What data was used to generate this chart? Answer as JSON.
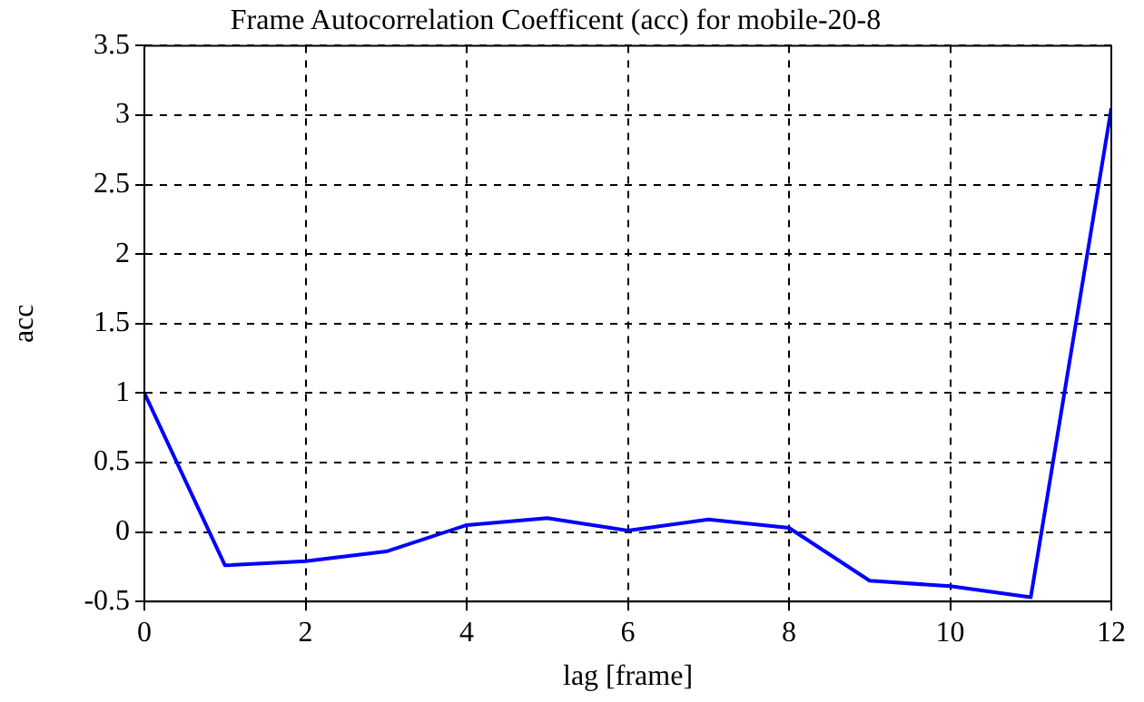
{
  "chart_data": {
    "type": "line",
    "title": "Frame Autocorrelation Coefficent (acc) for mobile-20-8",
    "xlabel": "lag [frame]",
    "ylabel": "acc",
    "x": [
      0,
      1,
      2,
      3,
      4,
      5,
      6,
      7,
      8,
      9,
      10,
      11,
      12
    ],
    "series": [
      {
        "color": "#0000ff",
        "values": [
          1.0,
          -0.24,
          -0.21,
          -0.14,
          0.05,
          0.1,
          0.01,
          0.09,
          0.03,
          -0.35,
          -0.39,
          -0.47,
          3.05
        ]
      }
    ],
    "xlim": [
      0,
      12
    ],
    "xticks": [
      0,
      2,
      4,
      6,
      8,
      10,
      12
    ],
    "ylim": [
      -0.5,
      3.5
    ],
    "yticks": [
      -0.5,
      0,
      0.5,
      1,
      1.5,
      2,
      2.5,
      3,
      3.5
    ],
    "grid": true,
    "legend": false,
    "marker": "none",
    "line_style": "solid"
  }
}
